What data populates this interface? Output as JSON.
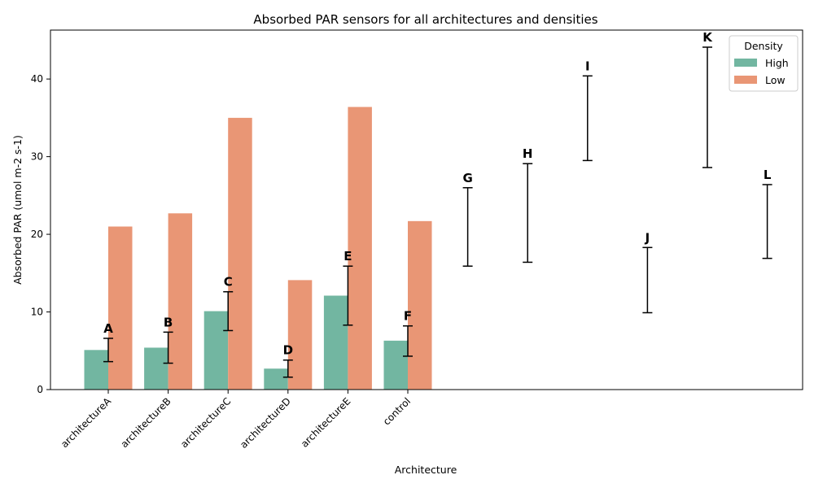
{
  "chart_data": {
    "type": "bar",
    "title": "Absorbed PAR sensors for all architectures and densities",
    "xlabel": "Architecture",
    "ylabel": "Absorbed PAR (umol m-2 s-1)",
    "ylim": [
      0,
      46.3
    ],
    "yticks": [
      0,
      10,
      20,
      30,
      40
    ],
    "grid": false,
    "categories": [
      "architectureA",
      "architectureB",
      "architectureC",
      "architectureD",
      "architectureE",
      "control"
    ],
    "series": [
      {
        "name": "High",
        "color": "#72b6a1",
        "values": [
          5.1,
          5.4,
          10.1,
          2.7,
          12.1,
          6.3
        ]
      },
      {
        "name": "Low",
        "color": "#e99675",
        "values": [
          21.0,
          22.7,
          35.0,
          14.1,
          36.4,
          21.7
        ]
      }
    ],
    "error_bars": [
      {
        "label": "A",
        "low": 3.6,
        "high": 6.6
      },
      {
        "label": "B",
        "low": 3.4,
        "high": 7.4
      },
      {
        "label": "C",
        "low": 7.6,
        "high": 12.6
      },
      {
        "label": "D",
        "low": 1.6,
        "high": 3.8
      },
      {
        "label": "E",
        "low": 8.3,
        "high": 15.9
      },
      {
        "label": "F",
        "low": 4.3,
        "high": 8.2
      },
      {
        "label": "G",
        "low": 15.9,
        "high": 26.0
      },
      {
        "label": "H",
        "low": 16.4,
        "high": 29.1
      },
      {
        "label": "I",
        "low": 29.5,
        "high": 40.4
      },
      {
        "label": "J",
        "low": 9.9,
        "high": 18.3
      },
      {
        "label": "K",
        "low": 28.6,
        "high": 44.1
      },
      {
        "label": "L",
        "low": 16.9,
        "high": 26.4
      }
    ],
    "legend": {
      "title": "Density",
      "position": "top-right"
    }
  }
}
